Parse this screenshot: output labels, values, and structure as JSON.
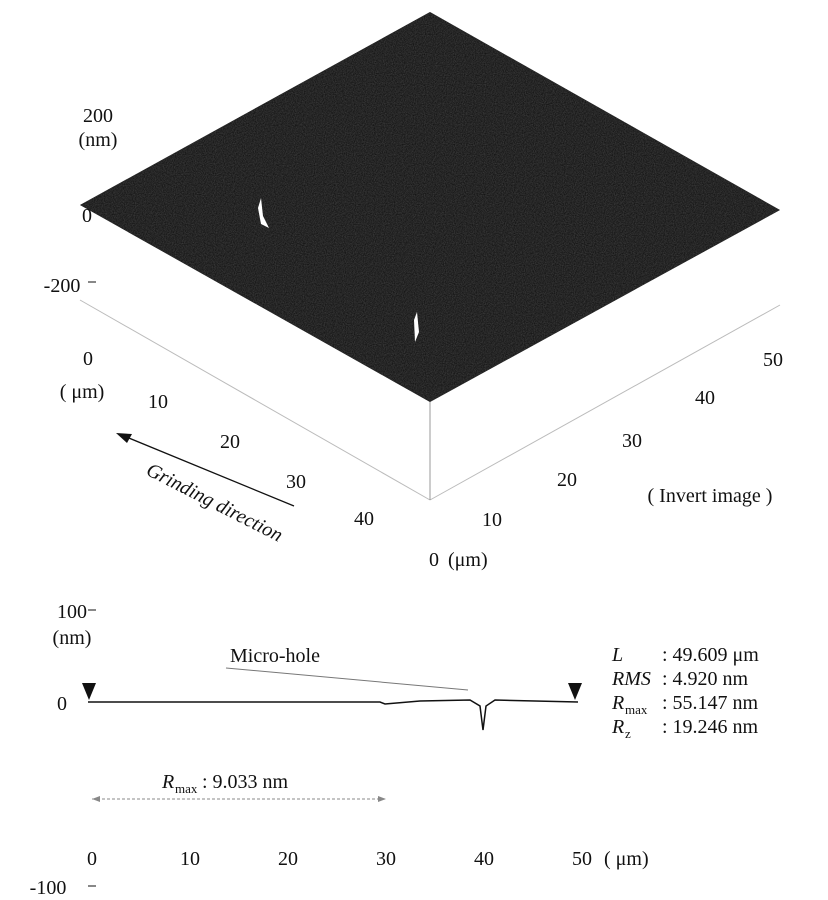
{
  "surface_view": {
    "z_axis": {
      "ticks": [
        "200",
        "0",
        "-200"
      ],
      "unit": "(nm)"
    },
    "x_axis": {
      "ticks": [
        "0",
        "10",
        "20",
        "30",
        "40"
      ],
      "unit": "( μm)"
    },
    "y_axis": {
      "ticks": [
        "0",
        "10",
        "20",
        "30",
        "40",
        "50"
      ],
      "unit": "(μm)"
    },
    "arrow_label": "Grinding direction",
    "note": "( Invert image )"
  },
  "profile": {
    "y_axis": {
      "ticks": [
        "100",
        "0",
        "-100"
      ],
      "unit": "(nm)"
    },
    "x_axis": {
      "ticks": [
        "0",
        "10",
        "20",
        "30",
        "40",
        "50"
      ],
      "unit": "( μm)"
    },
    "annotation": "Micro-hole",
    "segment_label": {
      "symbol": "R",
      "sub": "max",
      "value": ": 9.033 nm"
    },
    "stats": [
      {
        "symbol": "L",
        "sub": "",
        "value": ": 49.609 μm"
      },
      {
        "symbol": "RMS",
        "sub": "",
        "value": ":  4.920 nm"
      },
      {
        "symbol": "R",
        "sub": "max",
        "value": ": 55.147 nm"
      },
      {
        "symbol": "R",
        "sub": "z",
        "value": ": 19.246 nm"
      }
    ]
  }
}
